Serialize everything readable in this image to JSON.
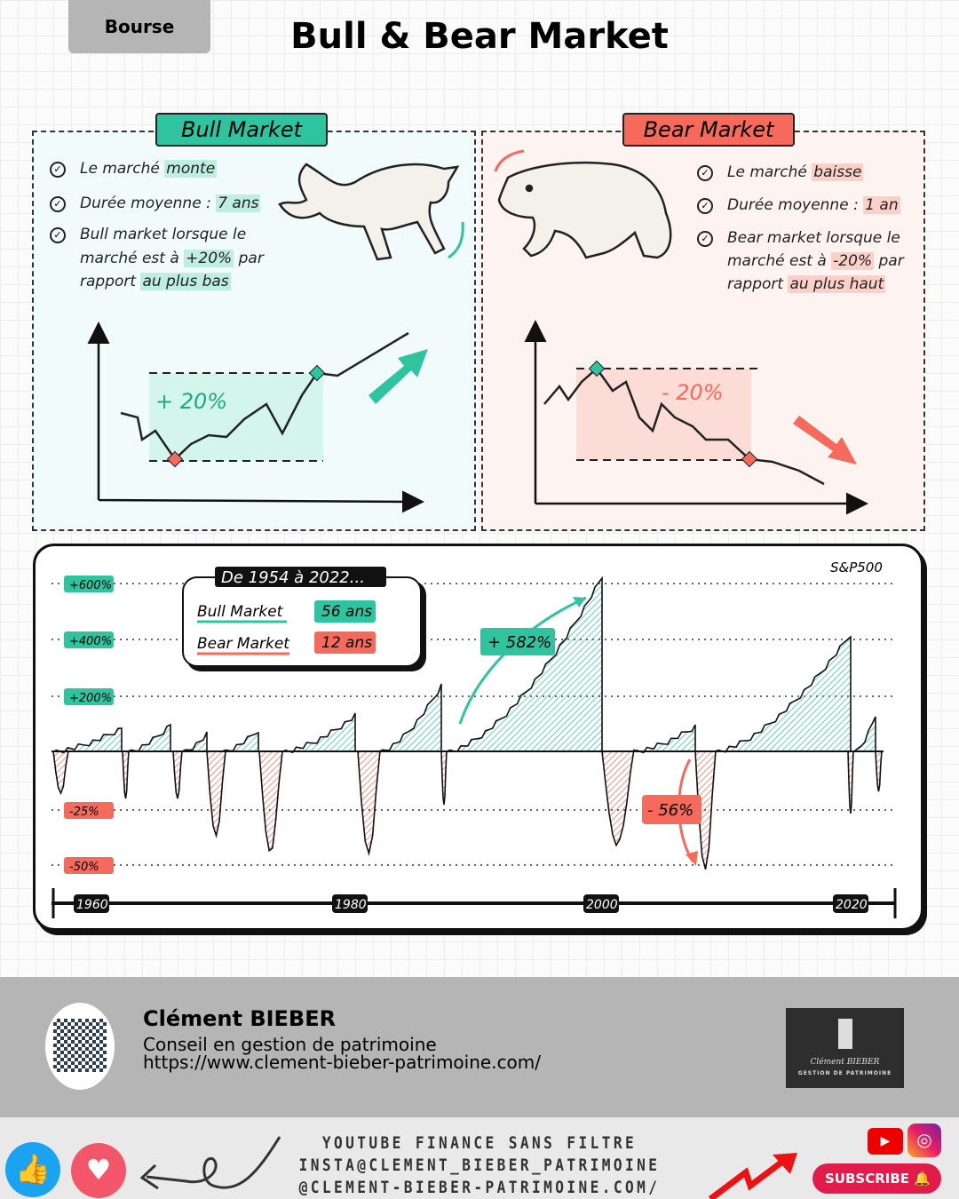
{
  "header": {
    "tag": "Bourse",
    "title": "Bull & Bear Market"
  },
  "bull": {
    "label": "Bull Market",
    "color": "#2ec4a0",
    "lines": [
      [
        "Le marché ",
        "monte",
        ""
      ],
      [
        "Durée moyenne : ",
        "7 ans",
        ""
      ],
      [
        "Bull market lorsque le",
        "",
        ""
      ],
      [
        "marché est à ",
        "+20%",
        " par"
      ],
      [
        "rapport ",
        "au plus bas",
        ""
      ]
    ],
    "change": "+ 20%"
  },
  "bear": {
    "label": "Bear Market",
    "color": "#f56a5a",
    "lines": [
      [
        "Le marché ",
        "baisse",
        ""
      ],
      [
        "Durée moyenne : ",
        "1 an",
        ""
      ],
      [
        "Bear market lorsque le",
        "",
        ""
      ],
      [
        "marché est à ",
        "-20%",
        " par"
      ],
      [
        "rapport ",
        "au plus haut",
        ""
      ]
    ],
    "change": "- 20%"
  },
  "chart": {
    "index": "S&P500",
    "period": "De 1954 à 2022...",
    "legend": [
      {
        "name": "Bull Market",
        "value": "56 ans"
      },
      {
        "name": "Bear Market",
        "value": "12 ans"
      }
    ],
    "y_labels": [
      "+600%",
      "+400%",
      "+200%",
      "-25%",
      "-50%"
    ],
    "x_labels": [
      "1960",
      "1980",
      "2000",
      "2020"
    ],
    "annotations": {
      "max_bull": "+ 582%",
      "max_bear": "- 56%"
    }
  },
  "author": {
    "name": "Clément BIEBER",
    "role": "Conseil en gestion de patrimoine",
    "url": "https://www.clement-bieber-patrimoine.com/",
    "logo_name": "Clément BIEBER",
    "logo_sub": "GESTION DE PATRIMOINE"
  },
  "footer": {
    "lines": [
      "YOUTUBE FINANCE SANS FILTRE",
      "INSTA@CLEMENT_BIEBER_PATRIMOINE",
      "@CLEMENT-BIEBER-PATRIMOINE.COM/"
    ],
    "subscribe": "SUBSCRIBE"
  }
}
